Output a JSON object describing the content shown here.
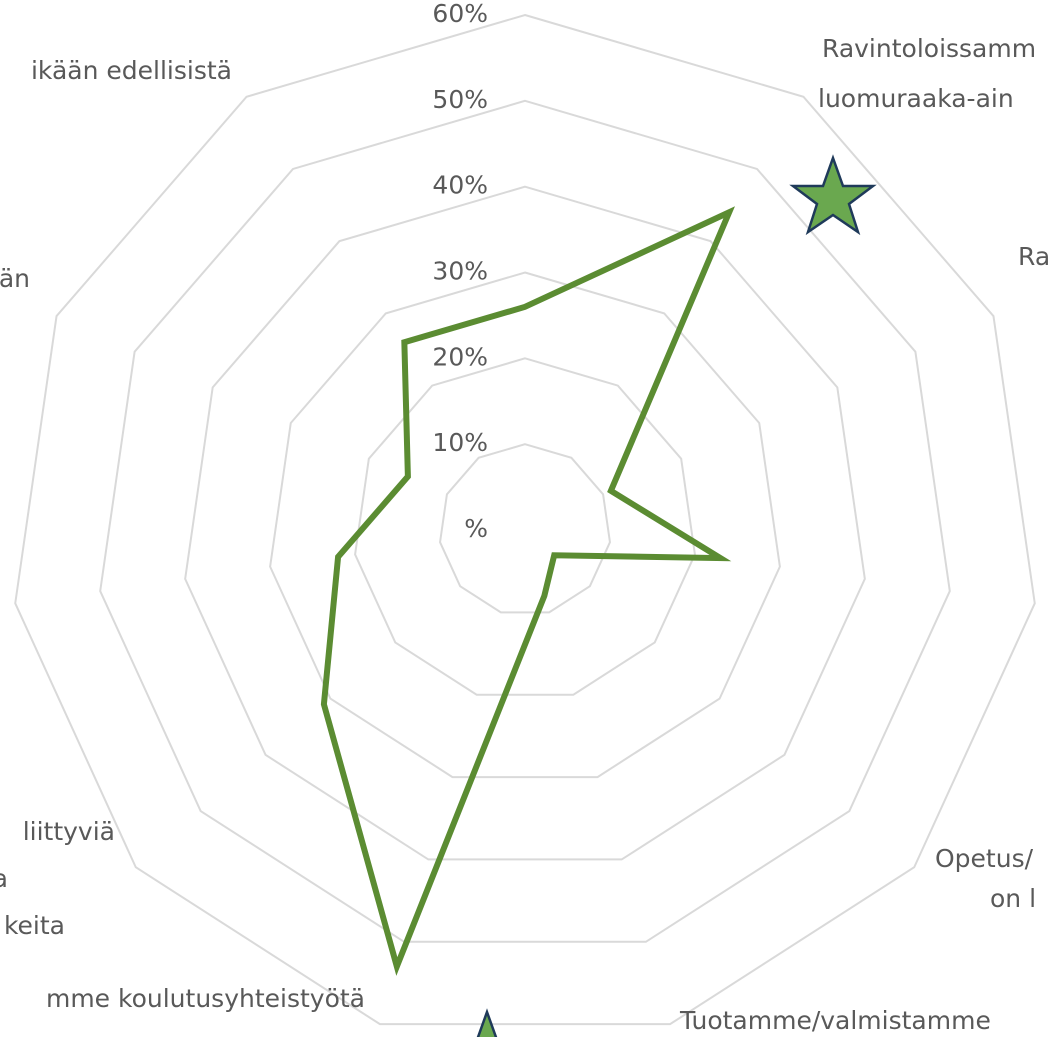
{
  "chart_data": {
    "type": "radar",
    "categories": [
      null,
      [
        "Ravintoloissamm",
        "luomuraaka-ain"
      ],
      [
        "Ra"
      ],
      null,
      [
        "Opetus/",
        "on l"
      ],
      [
        "Tuotamme/valmistamme"
      ],
      [
        "mme koulutusyhteistyötä"
      ],
      [
        "liittyviä",
        "a",
        "keita"
      ],
      null,
      [
        "än"
      ],
      [
        "ikään edellisistä"
      ]
    ],
    "series": [
      {
        "color": "#5b8c32",
        "values": [
          26,
          44,
          11,
          23,
          4.5,
          8,
          53,
          31,
          22,
          15,
          26
        ]
      }
    ],
    "ylim": [
      0,
      60
    ],
    "yticks": [
      {
        "value": 0,
        "label": "%"
      },
      {
        "value": 10,
        "label": "10%"
      },
      {
        "value": 20,
        "label": "20%"
      },
      {
        "value": 30,
        "label": "30%"
      },
      {
        "value": 40,
        "label": "40%"
      },
      {
        "value": 50,
        "label": "50%"
      },
      {
        "value": 60,
        "label": "60%"
      }
    ],
    "grid": true
  }
}
